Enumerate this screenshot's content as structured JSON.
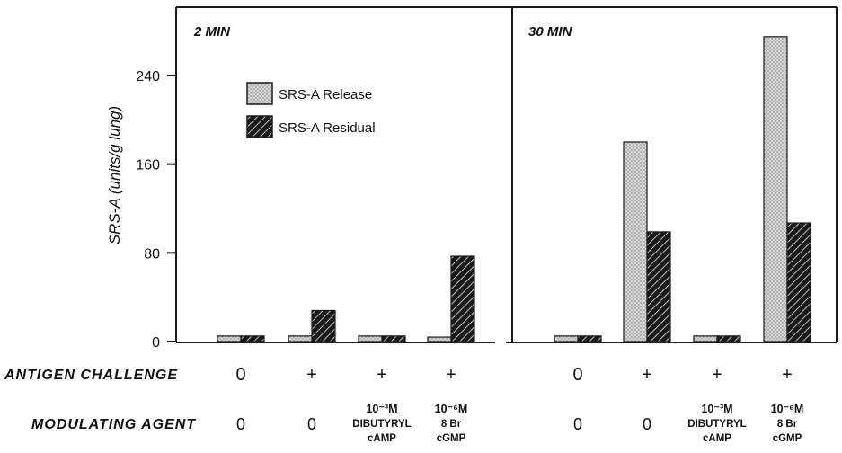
{
  "chart_data": {
    "type": "bar",
    "ylabel": "SRS-A (units/g lung)",
    "yticks": [
      0,
      80,
      160,
      240
    ],
    "ylim": [
      0,
      300
    ],
    "legend": {
      "placement": "top-left of left panel",
      "entries": [
        "SRS-A Release",
        "SRS-A Residual"
      ]
    },
    "row_labels": {
      "antigen": "ANTIGEN CHALLENGE",
      "agent": "MODULATING AGENT"
    },
    "panels": [
      {
        "title": "2 MIN",
        "groups": [
          {
            "antigen": "0",
            "agent": [
              "0"
            ],
            "release": 5,
            "residual": 5
          },
          {
            "antigen": "+",
            "agent": [
              "0"
            ],
            "release": 5,
            "residual": 28
          },
          {
            "antigen": "+",
            "agent": [
              "10⁻³M",
              "DIBUTYRYL",
              "cAMP"
            ],
            "release": 5,
            "residual": 5
          },
          {
            "antigen": "+",
            "agent": [
              "10⁻⁶M",
              "8 Br",
              "cGMP"
            ],
            "release": 4,
            "residual": 77
          }
        ]
      },
      {
        "title": "30 MIN",
        "groups": [
          {
            "antigen": "0",
            "agent": [
              "0"
            ],
            "release": 5,
            "residual": 5
          },
          {
            "antigen": "+",
            "agent": [
              "0"
            ],
            "release": 180,
            "residual": 99
          },
          {
            "antigen": "+",
            "agent": [
              "10⁻³M",
              "DIBUTYRYL",
              "cAMP"
            ],
            "release": 5,
            "residual": 5
          },
          {
            "antigen": "+",
            "agent": [
              "10⁻⁶M",
              "8 Br",
              "cGMP"
            ],
            "release": 275,
            "residual": 107
          }
        ]
      }
    ],
    "colors": {
      "axis": "#1a1a1a",
      "release_fill": "#d9d9d9",
      "residual_fill": "#1a1a1a",
      "background": "#ffffff"
    }
  }
}
